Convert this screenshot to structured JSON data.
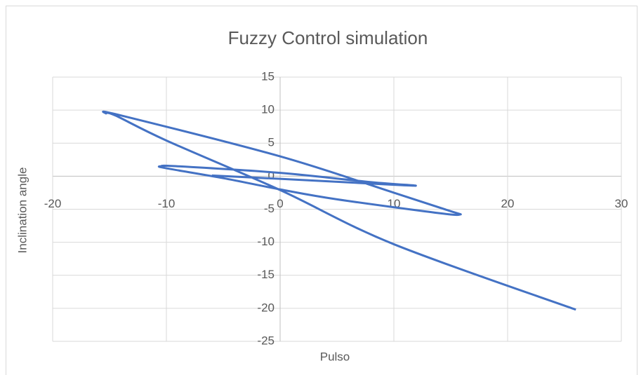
{
  "chart_data": {
    "type": "scatter",
    "title": "Fuzzy Control simulation",
    "x_label": "Pulso",
    "y_label": "Inclination angle",
    "xlim": [
      -20,
      30
    ],
    "xticks": [
      -20,
      -10,
      0,
      10,
      20,
      30
    ],
    "ylim": [
      -25,
      15
    ],
    "yticks": [
      -25,
      -20,
      -15,
      -10,
      -5,
      0,
      5,
      10,
      15
    ],
    "grid": true,
    "series": [
      {
        "color": "#4472c4",
        "x": [
          26,
          10,
          0,
          -10,
          -14.5,
          -15.3,
          -14,
          0,
          10,
          15,
          15.8,
          14,
          5,
          0,
          -5,
          -10,
          -10.5,
          -9,
          0,
          8,
          11.8,
          10,
          0,
          -6
        ],
        "values": [
          -20.2,
          -10.3,
          -2.1,
          5.4,
          9.2,
          9.5,
          9.2,
          3,
          -2.5,
          -5.3,
          -5.8,
          -5.6,
          -3.5,
          -2,
          -0.3,
          1.2,
          1.5,
          1.5,
          0.5,
          -0.9,
          -1.4,
          -1.3,
          -0.4,
          0.1
        ]
      }
    ]
  }
}
